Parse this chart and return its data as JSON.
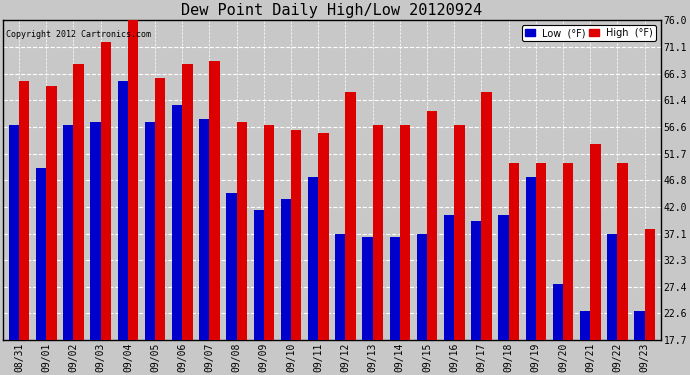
{
  "title": "Dew Point Daily High/Low 20120924",
  "copyright": "Copyright 2012 Cartronics.com",
  "dates": [
    "08/31",
    "09/01",
    "09/02",
    "09/03",
    "09/04",
    "09/05",
    "09/06",
    "09/07",
    "09/08",
    "09/09",
    "09/10",
    "09/11",
    "09/12",
    "09/13",
    "09/14",
    "09/15",
    "09/16",
    "09/17",
    "09/18",
    "09/19",
    "09/20",
    "09/21",
    "09/22",
    "09/23"
  ],
  "high": [
    65.0,
    64.0,
    68.0,
    72.0,
    76.0,
    65.5,
    68.0,
    68.5,
    57.5,
    57.0,
    56.0,
    55.5,
    63.0,
    57.0,
    57.0,
    59.5,
    57.0,
    63.0,
    50.0,
    50.0,
    50.0,
    53.5,
    50.0,
    38.0
  ],
  "low": [
    57.0,
    49.0,
    57.0,
    57.5,
    65.0,
    57.5,
    60.5,
    58.0,
    44.5,
    41.5,
    43.5,
    47.5,
    37.0,
    36.5,
    36.5,
    37.0,
    40.5,
    39.5,
    40.5,
    47.5,
    28.0,
    23.0,
    37.0,
    23.0
  ],
  "yticks": [
    17.7,
    22.6,
    27.4,
    32.3,
    37.1,
    42.0,
    46.8,
    51.7,
    56.6,
    61.4,
    66.3,
    71.1,
    76.0
  ],
  "ymin": 17.7,
  "ymax": 76.0,
  "bar_width": 0.38,
  "low_color": "#0000cc",
  "high_color": "#dd0000",
  "bg_color": "#c8c8c8",
  "plot_bg_color": "#c8c8c8",
  "grid_color": "white",
  "title_fontsize": 11,
  "tick_fontsize": 7,
  "fig_width": 6.9,
  "fig_height": 3.75
}
